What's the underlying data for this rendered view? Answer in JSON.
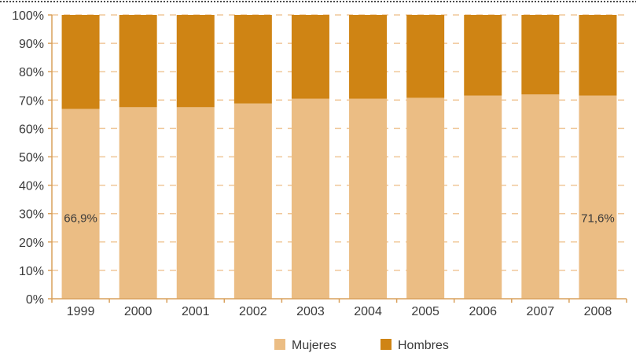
{
  "chart_data": {
    "type": "bar",
    "stacked": true,
    "title": "",
    "xlabel": "",
    "ylabel": "",
    "ylim": [
      0,
      100
    ],
    "categories": [
      "1999",
      "2000",
      "2001",
      "2002",
      "2003",
      "2004",
      "2005",
      "2006",
      "2007",
      "2008"
    ],
    "y_ticks": [
      "0%",
      "10%",
      "20%",
      "30%",
      "40%",
      "50%",
      "60%",
      "70%",
      "80%",
      "90%",
      "100%"
    ],
    "series": [
      {
        "name": "Mujeres",
        "color": "#ebbd84",
        "values": [
          66.9,
          67.5,
          67.5,
          68.8,
          70.5,
          70.5,
          70.8,
          71.6,
          72.0,
          71.6
        ]
      },
      {
        "name": "Hombres",
        "color": "#cf8414",
        "values": [
          33.1,
          32.5,
          32.5,
          31.2,
          29.5,
          29.5,
          29.2,
          28.4,
          28.0,
          28.4
        ]
      }
    ],
    "data_labels": [
      {
        "category": "1999",
        "text": "66,9%"
      },
      {
        "category": "2008",
        "text": "71,6%"
      }
    ],
    "grid": true,
    "gridline_color": "#f0c89a",
    "legend": {
      "position": "bottom"
    }
  }
}
